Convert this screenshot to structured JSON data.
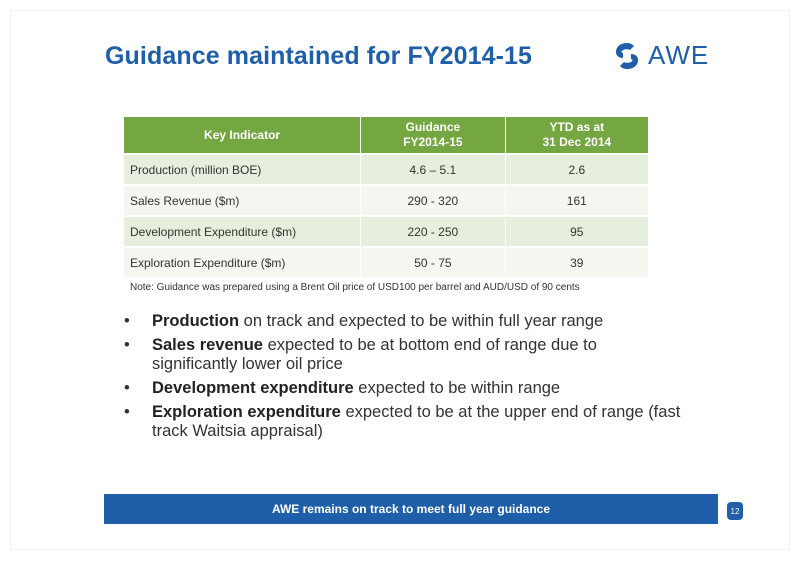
{
  "title": "Guidance maintained for FY2014-15",
  "logo": {
    "text": "AWE",
    "brand_color": "#1f5ea8"
  },
  "table": {
    "headers": {
      "indicator": "Key Indicator",
      "guidance_line1": "Guidance",
      "guidance_line2": "FY2014-15",
      "ytd_line1": "YTD as at",
      "ytd_line2": "31 Dec 2014"
    },
    "header_color": "#74a642",
    "rows": [
      {
        "indicator": "Production (million BOE)",
        "guidance": "4.6 – 5.1",
        "ytd": "2.6"
      },
      {
        "indicator": "Sales Revenue ($m)",
        "guidance": "290 - 320",
        "ytd": "161"
      },
      {
        "indicator": "Development Expenditure ($m)",
        "guidance": "220 - 250",
        "ytd": "95"
      },
      {
        "indicator": "Exploration Expenditure ($m)",
        "guidance": "50 - 75",
        "ytd": "39"
      }
    ]
  },
  "note": "Note: Guidance was prepared using a Brent Oil price of USD100 per barrel and AUD/USD of 90 cents",
  "bullets": [
    {
      "bold": "Production",
      "text": " on track and expected to be within full year range"
    },
    {
      "bold": "Sales revenue",
      "text": " expected to be at bottom end of range due to significantly lower oil price"
    },
    {
      "bold": "Development expenditure",
      "text": " expected to be within range"
    },
    {
      "bold": "Exploration expenditure",
      "text": " expected to be at the upper end of range (fast track Waitsia appraisal)"
    }
  ],
  "bullet_symbol": "•",
  "banner": "AWE remains on track to meet full year guidance",
  "page_number": "12"
}
